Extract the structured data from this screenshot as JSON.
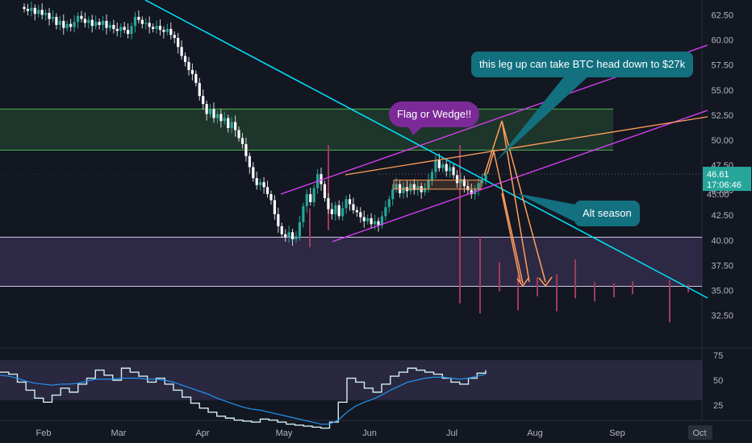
{
  "chart_data": [
    {
      "type": "candlestick",
      "y_axis": {
        "ticks": [
          "62.50",
          "60.00",
          "57.50",
          "55.00",
          "52.50",
          "50.00",
          "47.50",
          "45.00",
          "42.50",
          "40.00",
          "37.50",
          "35.00",
          "32.50"
        ],
        "ylim": [
          31.5,
          63.5
        ]
      },
      "price_labels": {
        "last_price": "46.61",
        "countdown": "17:06:46",
        "lower_price": "45.00"
      },
      "grid": false,
      "candles": [
        [
          63.3,
          63.1
        ],
        [
          63.1,
          62.9
        ],
        [
          62.9,
          63.2
        ],
        [
          63.2,
          62.6
        ],
        [
          62.6,
          63.0
        ],
        [
          63.0,
          62.5
        ],
        [
          62.5,
          62.7
        ],
        [
          62.7,
          62.1
        ],
        [
          62.1,
          62.3
        ],
        [
          62.3,
          61.5
        ],
        [
          61.5,
          61.9
        ],
        [
          61.9,
          61.2
        ],
        [
          61.2,
          61.6
        ],
        [
          61.6,
          61.3
        ],
        [
          61.3,
          61.8
        ],
        [
          61.8,
          62.4
        ],
        [
          62.4,
          62.1
        ],
        [
          62.1,
          61.7
        ],
        [
          61.7,
          62.0
        ],
        [
          62.0,
          61.4
        ],
        [
          61.4,
          61.8
        ],
        [
          61.8,
          61.5
        ],
        [
          61.5,
          61.9
        ],
        [
          61.9,
          61.2
        ],
        [
          61.2,
          61.5
        ],
        [
          61.5,
          61.1
        ],
        [
          61.1,
          60.9
        ],
        [
          60.9,
          61.3
        ],
        [
          61.3,
          61.0
        ],
        [
          61.0,
          60.6
        ],
        [
          60.6,
          61.4
        ],
        [
          61.4,
          62.3
        ],
        [
          62.3,
          62.0
        ],
        [
          62.0,
          61.6
        ],
        [
          61.6,
          61.7
        ],
        [
          61.7,
          61.3
        ],
        [
          61.3,
          61.1
        ],
        [
          61.1,
          61.4
        ],
        [
          61.4,
          61.0
        ],
        [
          61.0,
          60.8
        ],
        [
          60.8,
          61.1
        ],
        [
          61.1,
          60.5
        ],
        [
          60.5,
          60.2
        ],
        [
          60.2,
          59.3
        ],
        [
          59.3,
          58.4
        ],
        [
          58.4,
          57.8
        ],
        [
          57.8,
          57.0
        ],
        [
          57.0,
          56.6
        ],
        [
          56.6,
          55.7
        ],
        [
          55.7,
          54.4
        ],
        [
          54.4,
          53.6
        ],
        [
          53.6,
          52.6
        ],
        [
          52.6,
          53.1
        ],
        [
          53.1,
          52.2
        ],
        [
          52.2,
          52.6
        ],
        [
          52.6,
          51.9
        ],
        [
          51.9,
          52.2
        ],
        [
          52.2,
          51.2
        ],
        [
          51.2,
          51.8
        ],
        [
          51.8,
          51.0
        ],
        [
          51.0,
          50.2
        ],
        [
          50.2,
          49.6
        ],
        [
          49.6,
          48.4
        ],
        [
          48.4,
          47.3
        ],
        [
          47.3,
          46.2
        ],
        [
          46.2,
          45.5
        ],
        [
          45.5,
          45.8
        ],
        [
          45.8,
          45.3
        ],
        [
          45.3,
          44.6
        ],
        [
          44.6,
          44.0
        ],
        [
          44.0,
          42.6
        ],
        [
          42.6,
          41.4
        ],
        [
          41.4,
          40.6
        ],
        [
          40.6,
          40.3
        ],
        [
          40.3,
          40.8
        ],
        [
          40.8,
          40.1
        ],
        [
          40.1,
          40.4
        ],
        [
          40.4,
          41.8
        ],
        [
          41.8,
          43.4
        ],
        [
          43.4,
          44.6
        ],
        [
          44.6,
          43.8
        ],
        [
          43.8,
          45.2
        ],
        [
          45.2,
          46.6
        ],
        [
          46.6,
          45.6
        ],
        [
          45.6,
          44.2
        ],
        [
          44.2,
          43.1
        ],
        [
          43.1,
          42.6
        ],
        [
          42.6,
          43.5
        ],
        [
          43.5,
          42.4
        ],
        [
          42.4,
          43.2
        ],
        [
          43.2,
          44.1
        ],
        [
          44.1,
          43.6
        ],
        [
          43.6,
          43.0
        ],
        [
          43.0,
          42.8
        ],
        [
          42.8,
          42.3
        ],
        [
          42.3,
          41.9
        ],
        [
          41.9,
          42.2
        ],
        [
          42.2,
          41.6
        ],
        [
          41.6,
          41.9
        ],
        [
          41.9,
          41.5
        ],
        [
          41.5,
          42.4
        ],
        [
          42.4,
          43.3
        ],
        [
          43.3,
          44.1
        ],
        [
          44.1,
          45.1
        ],
        [
          45.1,
          45.6
        ],
        [
          45.6,
          44.7
        ],
        [
          44.7,
          45.3
        ],
        [
          45.3,
          44.9
        ],
        [
          44.9,
          45.6
        ],
        [
          45.6,
          45.0
        ],
        [
          45.0,
          45.4
        ],
        [
          45.4,
          44.8
        ],
        [
          44.8,
          45.2
        ],
        [
          45.2,
          46.0
        ],
        [
          46.0,
          46.8
        ],
        [
          46.8,
          48.0
        ],
        [
          48.0,
          47.2
        ],
        [
          47.2,
          47.6
        ],
        [
          47.6,
          46.9
        ],
        [
          46.9,
          47.3
        ],
        [
          47.3,
          46.5
        ],
        [
          46.5,
          45.7
        ],
        [
          45.7,
          46.1
        ],
        [
          46.1,
          45.4
        ],
        [
          45.4,
          45.0
        ],
        [
          45.0,
          44.6
        ],
        [
          44.6,
          45.1
        ],
        [
          45.1,
          45.7
        ],
        [
          45.7,
          46.0
        ],
        [
          46.0,
          46.61
        ]
      ],
      "hlines": [
        {
          "price": 53.1,
          "color": "#4caf50"
        },
        {
          "price": 49.0,
          "color": "#4caf50"
        },
        {
          "price": 40.3,
          "color": "#d1c4e9"
        },
        {
          "price": 35.4,
          "color": "#d1c4e9"
        }
      ],
      "zones": [
        {
          "from": 49.0,
          "to": 53.1,
          "color": "rgba(76,175,80,0.20)"
        },
        {
          "from": 35.4,
          "to": 40.3,
          "color": "rgba(149,117,205,0.20)"
        }
      ],
      "ghost_wicks_top": [
        39.0,
        40.4,
        37.8,
        36.5,
        36.3,
        36.6,
        38.1,
        35.8,
        35.7,
        35.9,
        36.0,
        35.6
      ],
      "ghost_wicks_bottom": [
        33.7,
        32.7,
        34.9,
        33.0,
        34.4,
        32.9,
        34.2,
        33.9,
        34.3,
        34.6,
        31.8,
        34.8
      ],
      "accent_colors": {
        "up": "#26a69a",
        "down": "#ffffff",
        "channel": "#e040fb",
        "trend": "#00e5ff",
        "projection": "#ff9e5a"
      }
    },
    {
      "type": "line",
      "panel": "oscillator",
      "y_axis": {
        "ticks": [
          "75",
          "50",
          "25"
        ],
        "ylim": [
          0,
          100
        ]
      },
      "band": [
        30,
        70
      ],
      "series": [
        {
          "values": [
            58,
            56,
            48,
            40,
            32,
            28,
            35,
            42,
            38,
            46,
            52,
            60,
            55,
            50,
            62,
            58,
            54,
            48,
            52,
            46,
            40,
            33,
            27,
            22,
            18,
            14,
            12,
            10,
            9,
            8,
            11,
            10,
            8,
            6,
            5,
            4,
            3,
            2,
            8,
            28,
            52,
            48,
            42,
            38,
            46,
            54,
            58,
            62,
            60,
            58,
            56,
            52,
            48,
            46,
            52,
            57,
            60
          ]
        },
        {
          "values": [
            55,
            54,
            52,
            49,
            47,
            46,
            45,
            46,
            46,
            47,
            49,
            51,
            51,
            51,
            52,
            52,
            52,
            51,
            51,
            50,
            48,
            45,
            42,
            39,
            36,
            32,
            29,
            26,
            23,
            21,
            20,
            18,
            16,
            14,
            12,
            10,
            8,
            6,
            6,
            10,
            18,
            24,
            28,
            31,
            35,
            40,
            44,
            48,
            50,
            52,
            53,
            53,
            52,
            51,
            52,
            54,
            56
          ]
        }
      ]
    }
  ],
  "x_axis": {
    "labels": [
      "Feb",
      "Mar",
      "Apr",
      "May",
      "Jun",
      "Jul",
      "Aug",
      "Sep",
      "Oct"
    ],
    "highlighted_label": "Oct"
  },
  "annotations": {
    "flag": "Flag or Wedge!!",
    "btc": "this leg up can take BTC head down to $27k",
    "alt": "Alt season"
  }
}
